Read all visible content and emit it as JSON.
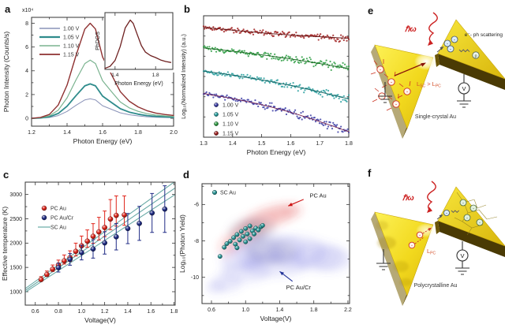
{
  "panel_labels": {
    "a": "a",
    "b": "b",
    "c": "c",
    "d": "d",
    "e": "e",
    "f": "f"
  },
  "chart_data": [
    {
      "panel": "a",
      "type": "line",
      "xlabel": "Photon Energy (eV)",
      "ylabel": "Photon Intensity (Counts/s)",
      "scale_label": "x10⁴",
      "xlim": [
        1.2,
        2.0
      ],
      "ylim": [
        -0.66,
        8.5
      ],
      "xticks": [
        1.2,
        1.4,
        1.6,
        1.8,
        2.0
      ],
      "xtick_labels": [
        "1.2",
        "1.4",
        "1.6",
        "1.8",
        "2.0"
      ],
      "xminor": [
        1.3,
        1.5,
        1.7,
        1.9
      ],
      "yticks": [
        0,
        2,
        4,
        6,
        8
      ],
      "ytick_labels": [
        "0",
        "2",
        "4",
        "6",
        "8"
      ],
      "yminor": [
        1,
        3,
        5,
        7
      ],
      "x": [
        1.2,
        1.25,
        1.3,
        1.35,
        1.4,
        1.45,
        1.5,
        1.53,
        1.56,
        1.6,
        1.65,
        1.7,
        1.75,
        1.8,
        1.85,
        1.9,
        1.95,
        2.0
      ],
      "series": [
        {
          "name": "1.00 V",
          "color": "#8a93b8",
          "width": 1.0,
          "values": [
            0,
            0.02,
            0.07,
            0.23,
            0.58,
            1.09,
            1.55,
            1.65,
            1.55,
            1.06,
            0.76,
            0.46,
            0.3,
            0.2,
            0.13,
            0.09,
            0.07,
            0.05
          ]
        },
        {
          "name": "1.05 V",
          "color": "#2f8c8c",
          "width": 1.8,
          "values": [
            0,
            0.03,
            0.12,
            0.41,
            1.02,
            1.91,
            2.73,
            2.9,
            2.73,
            1.87,
            1.33,
            0.81,
            0.52,
            0.35,
            0.23,
            0.16,
            0.12,
            0.09
          ]
        },
        {
          "name": "1.10 V",
          "color": "#7ab38f",
          "width": 1.2,
          "values": [
            0,
            0.05,
            0.2,
            0.69,
            1.72,
            3.23,
            4.61,
            4.9,
            4.61,
            3.16,
            2.25,
            1.37,
            0.88,
            0.59,
            0.39,
            0.27,
            0.2,
            0.15
          ]
        },
        {
          "name": "1.15 V",
          "color": "#8e3030",
          "width": 1.4,
          "values": [
            0,
            0.08,
            0.32,
            1.12,
            2.8,
            5.28,
            7.52,
            8.0,
            7.52,
            5.16,
            3.68,
            2.24,
            1.44,
            0.96,
            0.64,
            0.44,
            0.32,
            0.24
          ]
        }
      ],
      "inset": {
        "xlabel": "Photon Energy (eV)",
        "ylabel": "PhDOS",
        "xlim": [
          1.3,
          1.97
        ],
        "ylim": [
          0,
          1.15
        ],
        "xticks": [
          1.4,
          1.8
        ],
        "xtick_labels": [
          "1.4",
          "1.8"
        ],
        "xminor": [
          1.6
        ],
        "color": "#6e2020",
        "x": [
          1.3,
          1.35,
          1.4,
          1.45,
          1.5,
          1.55,
          1.58,
          1.62,
          1.66,
          1.7,
          1.75,
          1.8,
          1.85,
          1.9,
          1.95
        ],
        "y": [
          0.02,
          0.06,
          0.18,
          0.46,
          0.84,
          1.0,
          0.93,
          0.7,
          0.48,
          0.35,
          0.28,
          0.24,
          0.19,
          0.16,
          0.14
        ]
      }
    },
    {
      "panel": "b",
      "type": "noisy-line",
      "xlabel": "Photon Energy (eV)",
      "ylabel": "Log₁₀(Normalized Intensity) (a.u.)",
      "xlim": [
        1.3,
        1.8
      ],
      "ylim": [
        0,
        1
      ],
      "xticks": [
        1.3,
        1.4,
        1.5,
        1.6,
        1.7,
        1.8
      ],
      "xtick_labels": [
        "1.3",
        "1.4",
        "1.5",
        "1.6",
        "1.7",
        "1.8"
      ],
      "yminor": [
        0.167,
        0.333,
        0.5,
        0.667,
        0.833
      ],
      "series": [
        {
          "name": "1.15 V",
          "color": "#a02020",
          "line_color": "#5e1212",
          "y0": 0.905,
          "y1": 0.815,
          "bend": -0.01,
          "noise": 0.012,
          "seed": 7
        },
        {
          "name": "1.10 V",
          "color": "#2f9e44",
          "line_color": "#17641f",
          "y0": 0.735,
          "y1": 0.565,
          "bend": 0.012,
          "noise": 0.013,
          "seed": 13
        },
        {
          "name": "1.05 V",
          "color": "#2aa0a0",
          "line_color": "#115e5e",
          "y0": 0.545,
          "y1": 0.315,
          "bend": 0.02,
          "noise": 0.013,
          "seed": 29
        },
        {
          "name": "1.00 V",
          "color": "#3b3da6",
          "line_color": "#73214f",
          "y0": 0.36,
          "y1": 0.045,
          "bend": 0.035,
          "noise": 0.015,
          "seed": 41
        }
      ],
      "legend": [
        {
          "label": "1.00 V",
          "color": "#3b3da6"
        },
        {
          "label": "1.05 V",
          "color": "#2aa0a0"
        },
        {
          "label": "1.10 V",
          "color": "#2f9e44"
        },
        {
          "label": "1.15 V",
          "color": "#a02020"
        }
      ]
    },
    {
      "panel": "c",
      "type": "scatter-error",
      "xlabel": "Voltage(V)",
      "ylabel": "Effective temperature (K)",
      "xlim": [
        0.513,
        1.81
      ],
      "ylim": [
        724,
        3254
      ],
      "xticks": [
        0.6,
        0.8,
        1.0,
        1.2,
        1.4,
        1.6,
        1.8
      ],
      "xtick_labels": [
        "0.6",
        "0.8",
        "1.0",
        "1.2",
        "1.4",
        "1.6",
        "1.8"
      ],
      "xminor": [
        0.7,
        0.9,
        1.1,
        1.3,
        1.5,
        1.7
      ],
      "yticks": [
        1000,
        1500,
        2000,
        2500,
        3000
      ],
      "ytick_labels": [
        "1000",
        "1500",
        "2000",
        "2500",
        "3000"
      ],
      "yminor": [
        1250,
        1750,
        2250,
        2750
      ],
      "series": [
        {
          "name": "PC Au",
          "marker": "sphere",
          "color": "#e0261c",
          "asym": 0.55,
          "points": [
            [
              0.65,
              1250,
              60
            ],
            [
              0.7,
              1355,
              70
            ],
            [
              0.75,
              1465,
              85
            ],
            [
              0.8,
              1550,
              100
            ],
            [
              0.85,
              1635,
              120
            ],
            [
              0.9,
              1700,
              140
            ],
            [
              0.95,
              1830,
              170
            ],
            [
              1.0,
              1945,
              200
            ],
            [
              1.05,
              2040,
              230
            ],
            [
              1.1,
              2140,
              260
            ],
            [
              1.15,
              2230,
              300
            ],
            [
              1.2,
              2320,
              340
            ],
            [
              1.25,
              2495,
              400
            ],
            [
              1.3,
              2570,
              400
            ],
            [
              1.37,
              2580,
              390
            ]
          ]
        },
        {
          "name": "PC Au/Cr",
          "marker": "sphere",
          "color": "#202c86",
          "asym": 1.0,
          "points": [
            [
              0.8,
              1495,
              90
            ],
            [
              0.9,
              1665,
              120
            ],
            [
              1.0,
              1805,
              150
            ],
            [
              1.1,
              1880,
              190
            ],
            [
              1.2,
              2005,
              230
            ],
            [
              1.3,
              2130,
              270
            ],
            [
              1.4,
              2300,
              310
            ],
            [
              1.5,
              2405,
              350
            ],
            [
              1.61,
              2620,
              400
            ],
            [
              1.72,
              2700,
              480
            ]
          ]
        },
        {
          "name": "SC Au",
          "marker": "line",
          "color": "#68a9a5",
          "lines": [
            [
              0.513,
              990,
              1.81,
              3000
            ],
            [
              0.513,
              1025,
              1.81,
              3135
            ],
            [
              0.513,
              1065,
              1.81,
              3270
            ]
          ]
        }
      ]
    },
    {
      "panel": "d",
      "type": "scatter-cloud",
      "xlabel": "Voltage(V)",
      "ylabel": "Log₁₀(Photon Yield)",
      "xlim": [
        0.489,
        2.219
      ],
      "ylim": [
        -11.44,
        -4.86
      ],
      "xticks": [
        0.6,
        1.0,
        1.4,
        1.8,
        2.2
      ],
      "xtick_labels": [
        "0.6",
        "1.0",
        "1.4",
        "1.8",
        "2.2"
      ],
      "xminor": [
        0.8,
        1.2,
        1.6,
        2.0
      ],
      "yticks": [
        -6,
        -8,
        -10
      ],
      "ytick_labels": [
        "-6",
        "-8",
        "-10"
      ],
      "yminor": [
        -5,
        -7,
        -9,
        -11
      ],
      "clouds": [
        {
          "color": "#e03030",
          "opacity": 0.15,
          "blobs": [
            [
              0.78,
              -8.35,
              0.1,
              0.55
            ],
            [
              0.88,
              -7.95,
              0.12,
              0.6
            ],
            [
              0.98,
              -7.55,
              0.13,
              0.62
            ],
            [
              1.08,
              -7.2,
              0.15,
              0.65
            ],
            [
              1.2,
              -6.9,
              0.17,
              0.65
            ],
            [
              1.33,
              -6.62,
              0.18,
              0.6
            ],
            [
              1.45,
              -6.42,
              0.16,
              0.5
            ],
            [
              1.55,
              -6.3,
              0.12,
              0.4
            ]
          ]
        },
        {
          "color": "#70708f",
          "opacity": 0.18,
          "blobs": [
            [
              1.02,
              -7.55,
              0.22,
              0.75
            ],
            [
              1.15,
              -7.3,
              0.2,
              0.6
            ]
          ]
        },
        {
          "color": "#5a5ae0",
          "opacity": 0.12,
          "blobs": [
            [
              0.95,
              -9.0,
              0.25,
              0.7
            ],
            [
              1.15,
              -8.6,
              0.3,
              0.8
            ],
            [
              1.35,
              -8.45,
              0.35,
              0.85
            ],
            [
              1.6,
              -8.6,
              0.35,
              0.9
            ],
            [
              1.85,
              -8.85,
              0.3,
              0.8
            ],
            [
              1.35,
              -9.3,
              0.4,
              0.7
            ],
            [
              1.0,
              -9.7,
              0.3,
              0.6
            ],
            [
              0.78,
              -10.3,
              0.18,
              0.5
            ],
            [
              2.0,
              -9.0,
              0.25,
              0.7
            ],
            [
              0.65,
              -10.55,
              0.12,
              0.35
            ]
          ]
        },
        {
          "color": "#707090",
          "opacity": 0.15,
          "blobs": [
            [
              1.3,
              -8.6,
              0.3,
              0.7
            ]
          ]
        }
      ],
      "scatter": {
        "name": "SC Au",
        "color": "#2e9c9c",
        "points": [
          [
            0.7,
            -8.85
          ],
          [
            0.75,
            -8.35
          ],
          [
            0.78,
            -8.15
          ],
          [
            0.82,
            -8.02
          ],
          [
            0.86,
            -7.82
          ],
          [
            0.88,
            -8.18
          ],
          [
            0.9,
            -7.65
          ],
          [
            0.9,
            -8.38
          ],
          [
            0.93,
            -7.95
          ],
          [
            0.95,
            -7.48
          ],
          [
            0.97,
            -7.75
          ],
          [
            1.0,
            -7.32
          ],
          [
            1.0,
            -8.05
          ],
          [
            1.02,
            -7.62
          ],
          [
            1.05,
            -7.18
          ],
          [
            1.05,
            -7.88
          ],
          [
            1.08,
            -7.45
          ],
          [
            1.1,
            -7.62
          ],
          [
            1.12,
            -7.3
          ],
          [
            1.15,
            -7.4
          ],
          [
            1.18,
            -7.22
          ],
          [
            1.2,
            -7.15
          ]
        ]
      },
      "annotations": [
        {
          "text": "PC Au",
          "color": "#cc1111",
          "tx": 1.85,
          "ty": -5.5,
          "ax0": 1.68,
          "ay0": -5.72,
          "ax1": 1.5,
          "ay1": -6.08
        },
        {
          "text": "PC Au/Cr",
          "color": "#223399",
          "tx": 1.62,
          "ty": -10.55,
          "ax0": 1.55,
          "ay0": -10.22,
          "ax1": 1.4,
          "ay1": -9.68
        }
      ]
    }
  ],
  "schematics": {
    "e": {
      "hw": "ℏω",
      "scattering": "e⁻- ph scattering",
      "len": [
        "L",
        "SC",
        " > L",
        "PC"
      ],
      "caption": "Single-crystal Au",
      "voltmeter": "V",
      "electron": "-",
      "phonon": "p"
    },
    "f": {
      "hw": "ℏω",
      "len": [
        "L",
        "PC"
      ],
      "caption": "Polycrystalline Au",
      "voltmeter": "V",
      "electron": "-"
    }
  }
}
